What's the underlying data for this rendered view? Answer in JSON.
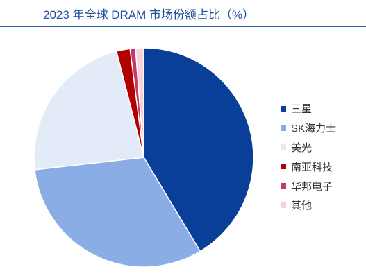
{
  "chart_data": {
    "type": "pie",
    "title": "2023 年全球 DRAM 市场份额占比（%）",
    "labels": [
      "三星",
      "SK海力士",
      "美光",
      "南亚科技",
      "华邦电子",
      "其他"
    ],
    "values": [
      41.4,
      31.8,
      22.8,
      2.0,
      0.8,
      1.2
    ],
    "colors": [
      "#0A3F99",
      "#8BADE5",
      "#E3EBF9",
      "#B20000",
      "#C23B67",
      "#F8D2DA"
    ],
    "direction": "clockwise",
    "legend": "right",
    "accent_color": "#1F4E9E"
  }
}
